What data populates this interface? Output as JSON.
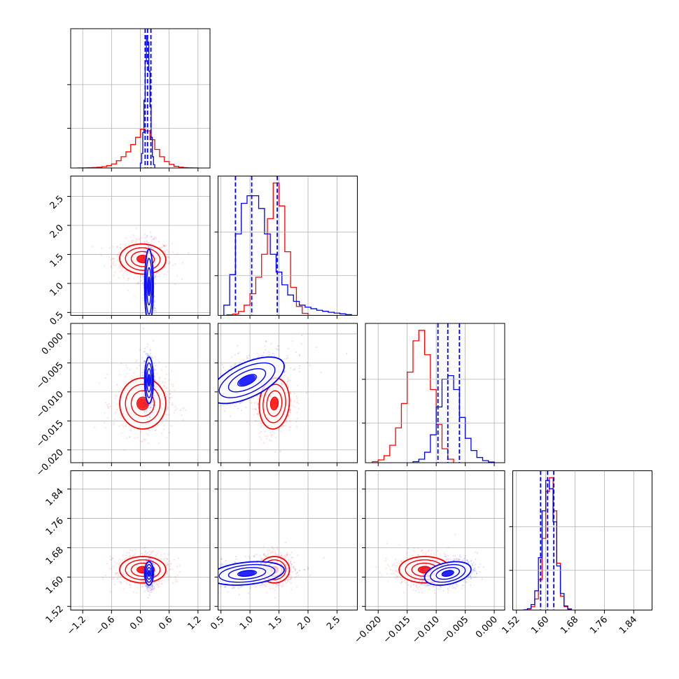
{
  "chart_data": {
    "type": "corner",
    "parameters": [
      {
        "ticks": [
          "−1.2",
          "−0.6",
          "0.0",
          "0.6",
          "1.2"
        ],
        "tick_values": [
          -1.2,
          -0.6,
          0.0,
          0.6,
          1.2
        ],
        "range": [
          -1.45,
          1.45
        ]
      },
      {
        "ticks": [
          "0.5",
          "1.0",
          "1.5",
          "2.0",
          "2.5"
        ],
        "tick_values": [
          0.5,
          1.0,
          1.5,
          2.0,
          2.5
        ],
        "range": [
          0.45,
          2.85
        ]
      },
      {
        "ticks": [
          "−0.020",
          "−0.015",
          "−0.010",
          "−0.005",
          "0.000"
        ],
        "tick_values": [
          -0.02,
          -0.015,
          -0.01,
          -0.005,
          0.0
        ],
        "range": [
          -0.0222,
          0.0018
        ]
      },
      {
        "ticks": [
          "1.52",
          "1.60",
          "1.68",
          "1.76",
          "1.84"
        ],
        "tick_values": [
          1.52,
          1.6,
          1.68,
          1.76,
          1.84
        ],
        "range": [
          1.51,
          1.89
        ]
      }
    ],
    "series": [
      {
        "color": "#ff0000",
        "means": [
          0.05,
          1.42,
          -0.012,
          1.62
        ],
        "sigmas": [
          0.24,
          0.13,
          0.0022,
          0.018
        ],
        "correlations": {
          "1-0": -0.05,
          "2-0": 0.0,
          "2-1": 0.1,
          "3-0": 0.0,
          "3-1": 0.0,
          "3-2": 0.0
        },
        "histograms": [
          {
            "edges": [
              -1.3,
              -1.2,
              -1.1,
              -1.0,
              -0.9,
              -0.8,
              -0.7,
              -0.6,
              -0.5,
              -0.4,
              -0.3,
              -0.2,
              -0.1,
              0.0,
              0.1,
              0.2,
              0.3,
              0.4,
              0.5,
              0.6,
              0.7,
              0.8,
              0.9,
              1.0,
              1.1,
              1.2
            ],
            "counts": [
              0.5,
              1,
              2,
              3,
              5,
              8,
              15,
              25,
              45,
              70,
              100,
              145,
              190,
              240,
              230,
              175,
              115,
              70,
              40,
              22,
              10,
              5,
              2,
              1,
              0.5
            ]
          },
          {
            "edges": [
              0.6,
              0.7,
              0.8,
              0.9,
              1.0,
              1.1,
              1.2,
              1.3,
              1.4,
              1.5,
              1.6,
              1.7,
              1.8,
              1.9,
              2.0
            ],
            "counts": [
              2,
              5,
              15,
              40,
              85,
              150,
              240,
              380,
              520,
              430,
              250,
              110,
              35,
              8
            ]
          },
          {
            "edges": [
              -0.021,
              -0.02,
              -0.019,
              -0.018,
              -0.017,
              -0.016,
              -0.015,
              -0.014,
              -0.013,
              -0.012,
              -0.011,
              -0.01,
              -0.009,
              -0.008,
              -0.007
            ],
            "counts": [
              3,
              8,
              20,
              50,
              100,
              170,
              260,
              350,
              380,
              310,
              210,
              110,
              40,
              10
            ]
          },
          {
            "edges": [
              1.54,
              1.55,
              1.56,
              1.57,
              1.58,
              1.59,
              1.6,
              1.61,
              1.62,
              1.63,
              1.64,
              1.65,
              1.66,
              1.67
            ],
            "counts": [
              1,
              4,
              12,
              40,
              110,
              260,
              430,
              480,
              360,
              170,
              50,
              12,
              3
            ]
          }
        ]
      },
      {
        "color": "#0000ff",
        "means": [
          0.18,
          0.95,
          -0.008,
          1.61
        ],
        "sigmas": [
          0.045,
          0.32,
          0.002,
          0.016
        ],
        "correlations": {
          "1-0": 0.0,
          "2-0": 0.0,
          "2-1": 0.6,
          "3-0": 0.0,
          "3-1": 0.3,
          "3-2": 0.35
        },
        "quantiles": [
          [
            0.1,
            0.15,
            0.22
          ],
          [
            0.75,
            1.03,
            1.47
          ],
          [
            -0.0097,
            -0.008,
            -0.006
          ],
          [
            1.586,
            1.605,
            1.622
          ]
        ],
        "histograms": [
          {
            "edges": [
              0.0,
              0.025,
              0.05,
              0.075,
              0.1,
              0.125,
              0.15,
              0.175,
              0.2,
              0.225,
              0.25,
              0.275,
              0.3
            ],
            "counts": [
              30,
              90,
              220,
              420,
              660,
              820,
              780,
              600,
              380,
              190,
              70,
              20
            ]
          },
          {
            "edges": [
              0.55,
              0.65,
              0.75,
              0.85,
              0.95,
              1.05,
              1.15,
              1.25,
              1.35,
              1.45,
              1.55,
              1.65,
              1.75,
              1.85,
              1.95,
              2.05,
              2.15,
              2.25,
              2.35,
              2.45,
              2.55,
              2.65,
              2.75
            ],
            "counts": [
              40,
              160,
              320,
              440,
              470,
              470,
              420,
              320,
              240,
              170,
              120,
              80,
              55,
              40,
              32,
              26,
              20,
              16,
              12,
              9,
              6,
              3
            ]
          },
          {
            "edges": [
              -0.014,
              -0.013,
              -0.012,
              -0.011,
              -0.01,
              -0.009,
              -0.008,
              -0.007,
              -0.006,
              -0.005,
              -0.004,
              -0.003,
              -0.002,
              -0.001,
              0.0
            ],
            "counts": [
              3,
              10,
              30,
              80,
              160,
              240,
              250,
              210,
              130,
              70,
              35,
              15,
              6,
              2
            ]
          },
          {
            "edges": [
              1.54,
              1.55,
              1.56,
              1.57,
              1.58,
              1.59,
              1.6,
              1.61,
              1.62,
              1.63,
              1.64,
              1.65,
              1.66,
              1.67
            ],
            "counts": [
              1,
              5,
              20,
              70,
              190,
              360,
              470,
              440,
              320,
              160,
              60,
              15,
              4
            ]
          }
        ]
      }
    ]
  }
}
